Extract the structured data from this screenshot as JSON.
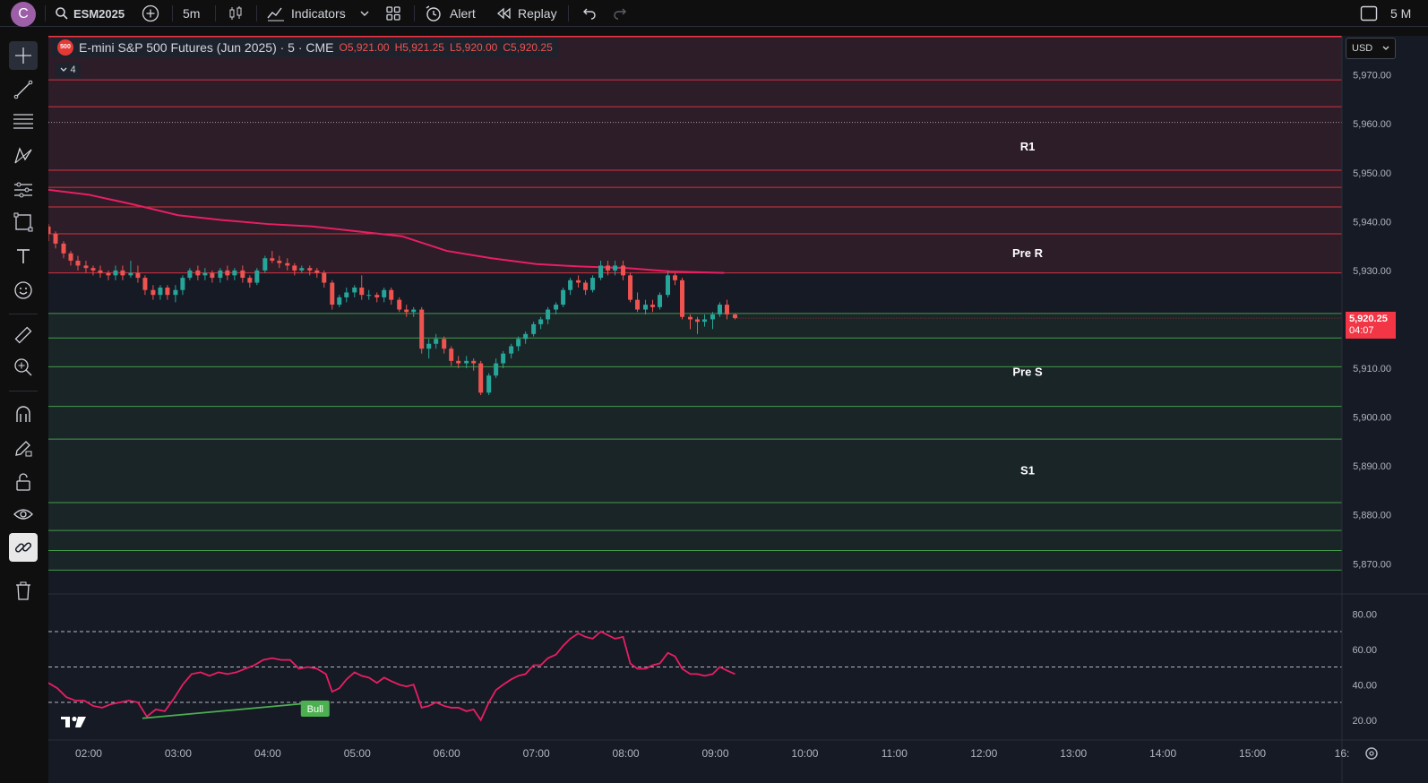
{
  "topbar": {
    "avatar_letter": "C",
    "symbol": "ESM2025",
    "interval": "5m",
    "indicators_label": "Indicators",
    "alert_label": "Alert",
    "replay_label": "Replay",
    "right_text": "5 M"
  },
  "legend": {
    "badge": "500",
    "title": "E-mini S&P 500 Futures (Jun 2025) · 5 · CME",
    "open": "O5,921.00",
    "high": "H5,921.25",
    "low": "L5,920.00",
    "close": "C5,920.25",
    "collapsed_count": "4"
  },
  "currency": "USD",
  "last_price": {
    "price": "5,920.25",
    "countdown": "04:07"
  },
  "zones": [
    {
      "label": "R1",
      "color": "#f23645"
    },
    {
      "label": "Pre R",
      "color": "#f23645"
    },
    {
      "label": "Pre S",
      "color": "#4caf50"
    },
    {
      "label": "S1",
      "color": "#4caf50"
    }
  ],
  "rsi": {
    "divergence_label": "Bull",
    "levels": [
      70,
      50,
      30
    ],
    "line_color": "#e91e63"
  },
  "chart_data": {
    "type": "candlestick",
    "price_axis": [
      "5,970.00",
      "5,960.00",
      "5,950.00",
      "5,940.00",
      "5,930.00",
      "5,910.00",
      "5,900.00",
      "5,890.00",
      "5,880.00",
      "5,870.00"
    ],
    "rsi_axis": [
      "80.00",
      "60.00",
      "40.00",
      "20.00"
    ],
    "time_axis": [
      "02:00",
      "03:00",
      "04:00",
      "05:00",
      "06:00",
      "07:00",
      "08:00",
      "09:00",
      "10:00",
      "11:00",
      "12:00",
      "13:00",
      "14:00",
      "15:00",
      "16:"
    ],
    "ylim": [
      5864,
      5978
    ],
    "time_range_hours": [
      1.55,
      16.0
    ],
    "zone_levels": [
      5969,
      5963.5,
      5950.5,
      5947,
      5943,
      5937.5,
      5929.5,
      5921.2,
      5916.2,
      5910.3,
      5902.2,
      5895.5,
      5882.5,
      5876.8,
      5872.7,
      5868.7
    ],
    "ma_points": [
      [
        1.55,
        5946.5
      ],
      [
        2.0,
        5945.5
      ],
      [
        2.5,
        5943.5
      ],
      [
        3.0,
        5941.3
      ],
      [
        3.5,
        5940.3
      ],
      [
        4.0,
        5939.5
      ],
      [
        4.5,
        5939
      ],
      [
        5.0,
        5938
      ],
      [
        5.5,
        5937
      ],
      [
        6.0,
        5934
      ],
      [
        6.5,
        5932.5
      ],
      [
        7.0,
        5931.3
      ],
      [
        7.5,
        5930.8
      ],
      [
        8.0,
        5930.5
      ],
      [
        8.5,
        5929.8
      ],
      [
        9.1,
        5929.5
      ]
    ],
    "candles": [
      [
        1.55,
        5939,
        5937.5,
        5939.5,
        5936
      ],
      [
        1.63,
        5937.5,
        5935.5,
        5938,
        5934.5
      ],
      [
        1.72,
        5935.5,
        5933.5,
        5936,
        5932.5
      ],
      [
        1.8,
        5933.5,
        5932,
        5934,
        5931
      ],
      [
        1.88,
        5932,
        5931,
        5933,
        5930
      ],
      [
        1.97,
        5931,
        5930.5,
        5932,
        5929.5
      ],
      [
        2.05,
        5930.5,
        5930,
        5931,
        5929
      ],
      [
        2.13,
        5930,
        5929.5,
        5931,
        5928.5
      ],
      [
        2.22,
        5929.5,
        5929,
        5930,
        5928
      ],
      [
        2.3,
        5929,
        5930,
        5931,
        5928
      ],
      [
        2.38,
        5930,
        5929,
        5931,
        5928
      ],
      [
        2.47,
        5929,
        5929.5,
        5932,
        5928.5
      ],
      [
        2.55,
        5929.5,
        5928.5,
        5931,
        5927.5
      ],
      [
        2.63,
        5928.5,
        5926,
        5929,
        5925
      ],
      [
        2.72,
        5926,
        5925,
        5927,
        5924
      ],
      [
        2.8,
        5925,
        5926.5,
        5927,
        5924
      ],
      [
        2.88,
        5926.5,
        5925,
        5927,
        5924
      ],
      [
        2.97,
        5925,
        5926,
        5927,
        5923.5
      ],
      [
        3.05,
        5926,
        5928.5,
        5929,
        5925
      ],
      [
        3.13,
        5928.5,
        5930,
        5930.5,
        5928
      ],
      [
        3.22,
        5930,
        5929,
        5931,
        5928
      ],
      [
        3.3,
        5929,
        5929.5,
        5930.5,
        5928
      ],
      [
        3.38,
        5929.5,
        5928.5,
        5930,
        5927.5
      ],
      [
        3.47,
        5928.5,
        5930,
        5930.5,
        5927.5
      ],
      [
        3.55,
        5930,
        5929,
        5931,
        5928
      ],
      [
        3.63,
        5929,
        5930,
        5930.5,
        5928
      ],
      [
        3.72,
        5930,
        5928.5,
        5931,
        5927.5
      ],
      [
        3.8,
        5928.5,
        5927.5,
        5929,
        5926.5
      ],
      [
        3.88,
        5927.5,
        5930,
        5930.5,
        5927
      ],
      [
        3.97,
        5930,
        5932.5,
        5933,
        5929.5
      ],
      [
        4.05,
        5932.5,
        5932,
        5934,
        5931.5
      ],
      [
        4.13,
        5932,
        5931.5,
        5933,
        5930.5
      ],
      [
        4.22,
        5931.5,
        5931,
        5932.5,
        5930
      ],
      [
        4.3,
        5931,
        5930,
        5931.5,
        5929
      ],
      [
        4.38,
        5930,
        5930.5,
        5931,
        5929.5
      ],
      [
        4.47,
        5930.5,
        5930,
        5931,
        5929
      ],
      [
        4.55,
        5930,
        5929.5,
        5930.5,
        5928.5
      ],
      [
        4.63,
        5929.5,
        5927.5,
        5930,
        5926.5
      ],
      [
        4.72,
        5927.5,
        5923,
        5928,
        5922
      ],
      [
        4.8,
        5923,
        5924.5,
        5925,
        5922.5
      ],
      [
        4.88,
        5924.5,
        5925.5,
        5926.5,
        5923.5
      ],
      [
        4.97,
        5925.5,
        5926.5,
        5927,
        5924.5
      ],
      [
        5.05,
        5926.5,
        5925,
        5929,
        5924
      ],
      [
        5.13,
        5925,
        5925,
        5926,
        5924
      ],
      [
        5.22,
        5925,
        5924.5,
        5925.5,
        5923.5
      ],
      [
        5.3,
        5924.5,
        5926,
        5926.5,
        5923.5
      ],
      [
        5.38,
        5926,
        5924,
        5926.5,
        5923
      ],
      [
        5.47,
        5924,
        5922,
        5924.5,
        5921.5
      ],
      [
        5.55,
        5922,
        5921.5,
        5923,
        5920.5
      ],
      [
        5.63,
        5921.5,
        5922,
        5922.5,
        5920.5
      ],
      [
        5.72,
        5922,
        5914,
        5922.5,
        5913
      ],
      [
        5.8,
        5914,
        5915,
        5916,
        5912
      ],
      [
        5.88,
        5915,
        5916,
        5917,
        5914
      ],
      [
        5.97,
        5916,
        5914,
        5916.5,
        5913
      ],
      [
        6.05,
        5914,
        5911.5,
        5914.5,
        5910.5
      ],
      [
        6.13,
        5911.5,
        5911,
        5912.5,
        5910
      ],
      [
        6.22,
        5911,
        5911.5,
        5912.5,
        5910
      ],
      [
        6.3,
        5911.5,
        5911,
        5912,
        5909.5
      ],
      [
        6.38,
        5911,
        5905,
        5911.5,
        5904.5
      ],
      [
        6.47,
        5905,
        5908.5,
        5909,
        5904.5
      ],
      [
        6.55,
        5908.5,
        5911,
        5912,
        5908
      ],
      [
        6.63,
        5911,
        5913,
        5913.5,
        5910
      ],
      [
        6.72,
        5913,
        5914.5,
        5915,
        5912
      ],
      [
        6.8,
        5914.5,
        5916,
        5916.5,
        5913.5
      ],
      [
        6.88,
        5916,
        5917,
        5917.5,
        5915
      ],
      [
        6.97,
        5917,
        5919,
        5919.5,
        5916.5
      ],
      [
        7.05,
        5919,
        5920,
        5920.5,
        5918
      ],
      [
        7.13,
        5920,
        5922,
        5922.5,
        5919
      ],
      [
        7.22,
        5922,
        5923,
        5923.5,
        5921
      ],
      [
        7.3,
        5923,
        5926,
        5926.5,
        5922.5
      ],
      [
        7.38,
        5926,
        5928,
        5928.5,
        5925
      ],
      [
        7.47,
        5928,
        5927.5,
        5929,
        5926.5
      ],
      [
        7.55,
        5927.5,
        5926,
        5928,
        5925
      ],
      [
        7.63,
        5926,
        5928.5,
        5929,
        5925.5
      ],
      [
        7.72,
        5928.5,
        5931,
        5932,
        5928
      ],
      [
        7.8,
        5931,
        5930,
        5932,
        5929
      ],
      [
        7.88,
        5930,
        5931,
        5932,
        5929
      ],
      [
        7.97,
        5931,
        5929,
        5932,
        5928
      ],
      [
        8.05,
        5929,
        5924,
        5929.5,
        5923.5
      ],
      [
        8.13,
        5924,
        5922,
        5925.5,
        5921.5
      ],
      [
        8.22,
        5922,
        5923,
        5924,
        5921
      ],
      [
        8.3,
        5923,
        5922.5,
        5924,
        5921.5
      ],
      [
        8.38,
        5922.5,
        5925,
        5925.5,
        5922
      ],
      [
        8.47,
        5925,
        5929,
        5930,
        5924.5
      ],
      [
        8.55,
        5929,
        5928,
        5929.5,
        5927
      ],
      [
        8.63,
        5928,
        5920.5,
        5928.5,
        5920
      ],
      [
        8.72,
        5920.5,
        5920,
        5921,
        5918
      ],
      [
        8.8,
        5920,
        5919.5,
        5920.5,
        5917
      ],
      [
        8.88,
        5919.5,
        5920,
        5921,
        5918.5
      ],
      [
        8.97,
        5920,
        5921,
        5921.5,
        5918
      ],
      [
        9.05,
        5921,
        5923,
        5923.5,
        5920.5
      ],
      [
        9.13,
        5923,
        5921,
        5924,
        5920
      ],
      [
        9.22,
        5921,
        5920.25,
        5921.25,
        5920
      ]
    ],
    "rsi_points": [
      [
        1.55,
        41
      ],
      [
        1.65,
        38
      ],
      [
        1.75,
        33
      ],
      [
        1.85,
        31
      ],
      [
        1.95,
        31
      ],
      [
        2.05,
        28
      ],
      [
        2.15,
        27
      ],
      [
        2.25,
        29
      ],
      [
        2.35,
        30
      ],
      [
        2.45,
        31
      ],
      [
        2.55,
        30
      ],
      [
        2.65,
        22
      ],
      [
        2.75,
        26
      ],
      [
        2.85,
        25
      ],
      [
        2.95,
        32
      ],
      [
        3.05,
        40
      ],
      [
        3.15,
        46
      ],
      [
        3.25,
        47
      ],
      [
        3.35,
        45
      ],
      [
        3.45,
        47
      ],
      [
        3.55,
        46
      ],
      [
        3.65,
        47
      ],
      [
        3.75,
        49
      ],
      [
        3.85,
        51
      ],
      [
        3.95,
        54
      ],
      [
        4.05,
        55
      ],
      [
        4.15,
        54
      ],
      [
        4.25,
        54
      ],
      [
        4.35,
        49
      ],
      [
        4.45,
        50
      ],
      [
        4.55,
        49
      ],
      [
        4.65,
        46
      ],
      [
        4.72,
        36
      ],
      [
        4.8,
        38
      ],
      [
        4.88,
        43
      ],
      [
        4.97,
        47
      ],
      [
        5.05,
        45
      ],
      [
        5.13,
        44
      ],
      [
        5.22,
        41
      ],
      [
        5.3,
        44
      ],
      [
        5.38,
        42
      ],
      [
        5.47,
        40
      ],
      [
        5.55,
        39
      ],
      [
        5.63,
        40
      ],
      [
        5.72,
        27
      ],
      [
        5.8,
        28
      ],
      [
        5.88,
        30
      ],
      [
        5.97,
        28
      ],
      [
        6.05,
        27
      ],
      [
        6.13,
        27
      ],
      [
        6.22,
        25
      ],
      [
        6.3,
        26
      ],
      [
        6.38,
        20
      ],
      [
        6.47,
        30
      ],
      [
        6.55,
        37
      ],
      [
        6.63,
        40
      ],
      [
        6.72,
        43
      ],
      [
        6.8,
        45
      ],
      [
        6.88,
        46
      ],
      [
        6.97,
        51
      ],
      [
        7.05,
        51
      ],
      [
        7.13,
        55
      ],
      [
        7.22,
        57
      ],
      [
        7.3,
        62
      ],
      [
        7.38,
        66
      ],
      [
        7.47,
        69
      ],
      [
        7.55,
        67
      ],
      [
        7.63,
        66
      ],
      [
        7.72,
        70
      ],
      [
        7.8,
        68
      ],
      [
        7.88,
        66
      ],
      [
        7.97,
        67
      ],
      [
        8.05,
        52
      ],
      [
        8.13,
        49
      ],
      [
        8.22,
        49
      ],
      [
        8.3,
        51
      ],
      [
        8.38,
        52
      ],
      [
        8.47,
        58
      ],
      [
        8.55,
        56
      ],
      [
        8.63,
        49
      ],
      [
        8.72,
        46
      ],
      [
        8.8,
        46
      ],
      [
        8.88,
        45
      ],
      [
        8.97,
        46
      ],
      [
        9.05,
        50
      ],
      [
        9.13,
        48
      ],
      [
        9.22,
        46
      ]
    ],
    "divergence": [
      [
        2.6,
        21
      ],
      [
        4.55,
        30
      ]
    ]
  }
}
